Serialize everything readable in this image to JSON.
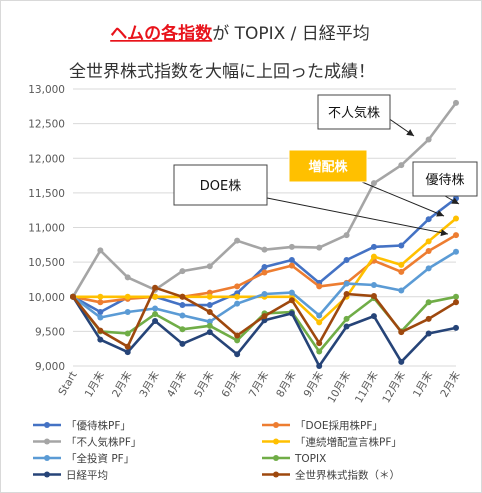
{
  "title": {
    "part_red": "ヘムの各指数",
    "part_rest": "が TOPIX / 日経平均",
    "line2": "全世界株式指数を大幅に上回った成績！"
  },
  "chart_data": {
    "type": "line",
    "categories": [
      "Start",
      "1月末",
      "2月末",
      "3月末",
      "4月末",
      "5月末",
      "6月末",
      "7月末",
      "8月末",
      "9月末",
      "10月末",
      "11月末",
      "12月末",
      "1月末",
      "2月末"
    ],
    "ylim": [
      9000,
      13000
    ],
    "yticks": [
      "9,000",
      "9,500",
      "10,000",
      "10,500",
      "11,000",
      "11,500",
      "12,000",
      "12,500",
      "13,000"
    ],
    "grid": true,
    "legend_position": "bottom",
    "series": [
      {
        "name": "「優待株PF」",
        "color": "#4472c4",
        "values": [
          10000,
          9780,
          9990,
          10000,
          9880,
          9880,
          10050,
          10430,
          10530,
          10200,
          10530,
          10720,
          10740,
          11120,
          11420
        ]
      },
      {
        "name": "「DOE採用株PF」",
        "color": "#ed7d31",
        "values": [
          10000,
          9920,
          9970,
          10000,
          10000,
          10060,
          10150,
          10350,
          10450,
          10150,
          10200,
          10520,
          10360,
          10660,
          10890
        ]
      },
      {
        "name": "「不人気株PF」",
        "color": "#a5a5a5",
        "values": [
          10000,
          10670,
          10280,
          10100,
          10370,
          10440,
          10810,
          10680,
          10720,
          10710,
          10890,
          11640,
          11900,
          12270,
          12800
        ]
      },
      {
        "name": "「連続増配宣言株PF」",
        "color": "#ffc000",
        "values": [
          10000,
          10000,
          10000,
          10000,
          10000,
          10000,
          10000,
          10000,
          10000,
          9630,
          10000,
          10580,
          10460,
          10800,
          11130
        ]
      },
      {
        "name": "「全投資 PF」",
        "color": "#5b9bd5",
        "values": [
          10000,
          9700,
          9780,
          9830,
          9730,
          9640,
          9900,
          10040,
          10060,
          9730,
          10190,
          10170,
          10090,
          10410,
          10650
        ]
      },
      {
        "name": "TOPIX",
        "color": "#70ad47",
        "values": [
          10000,
          9500,
          9470,
          9750,
          9530,
          9580,
          9370,
          9760,
          9780,
          9210,
          9680,
          9980,
          9500,
          9920,
          10000
        ]
      },
      {
        "name": "日経平均",
        "color": "#264478",
        "values": [
          10000,
          9380,
          9200,
          9650,
          9320,
          9490,
          9170,
          9660,
          9760,
          9000,
          9570,
          9720,
          9060,
          9470,
          9550
        ]
      },
      {
        "name": "全世界株式指数（＊）",
        "color": "#9e480e",
        "values": [
          10000,
          9510,
          9280,
          10130,
          10000,
          9780,
          9440,
          9720,
          9950,
          9330,
          10040,
          10010,
          9490,
          9680,
          9920
        ]
      }
    ],
    "annotations": [
      {
        "text": "不人気株",
        "style": "box",
        "target_series": 2
      },
      {
        "text": "増配株",
        "style": "box-filled",
        "fill": "#ffc000",
        "target_series": 3
      },
      {
        "text": "DOE株",
        "style": "box",
        "target_series": 1
      },
      {
        "text": "優待株",
        "style": "box",
        "target_series": 0
      }
    ]
  }
}
